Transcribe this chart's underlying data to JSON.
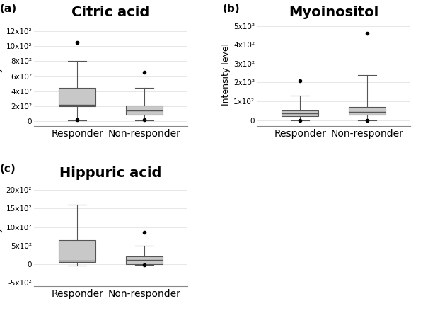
{
  "plots": [
    {
      "label": "(a)",
      "title": "Citric acid",
      "ylabel": "Intensity level",
      "groups": [
        "Responder",
        "Non-responder"
      ],
      "boxes": [
        {
          "whislo": 100,
          "q1": 2000,
          "med": 2200,
          "q3": 4500,
          "whishi": 8000,
          "fliers_high": [
            10500
          ],
          "fliers_low": [
            200
          ]
        },
        {
          "whislo": 100,
          "q1": 900,
          "med": 1400,
          "q3": 2100,
          "whishi": 4500,
          "fliers_high": [
            6500
          ],
          "fliers_low": [
            200
          ]
        }
      ],
      "ylim": [
        -600,
        13200
      ],
      "yticks": [
        0,
        2000,
        4000,
        6000,
        8000,
        10000,
        12000
      ],
      "yticklabels": [
        "0",
        "2x10²",
        "4x10²",
        "6x10²",
        "8x10²",
        "10x10²",
        "12x10²"
      ]
    },
    {
      "label": "(b)",
      "title": "Myoinositol",
      "ylabel": "Intensity level",
      "groups": [
        "Responder",
        "Non-responder"
      ],
      "boxes": [
        {
          "whislo": 0,
          "q1": 2000,
          "med": 3500,
          "q3": 5000,
          "whishi": 13000,
          "fliers_high": [
            21000
          ],
          "fliers_low": [
            0
          ]
        },
        {
          "whislo": 0,
          "q1": 3000,
          "med": 4500,
          "q3": 7000,
          "whishi": 24000,
          "fliers_high": [
            46000
          ],
          "fliers_low": [
            0
          ]
        }
      ],
      "ylim": [
        -3000,
        52000
      ],
      "yticks": [
        0,
        10000,
        20000,
        30000,
        40000,
        50000
      ],
      "yticklabels": [
        "0",
        "1x10²",
        "2x10²",
        "3x10²",
        "4x10²",
        "5x10²"
      ]
    },
    {
      "label": "(c)",
      "title": "Hippuric acid",
      "ylabel": "Intensity level",
      "groups": [
        "Responder",
        "Non-responder"
      ],
      "boxes": [
        {
          "whislo": -500,
          "q1": 500,
          "med": 1000,
          "q3": 6500,
          "whishi": 16000,
          "fliers_high": [],
          "fliers_low": []
        },
        {
          "whislo": -200,
          "q1": 0,
          "med": 1200,
          "q3": 2000,
          "whishi": 5000,
          "fliers_high": [
            8500
          ],
          "fliers_low": [
            -200
          ]
        }
      ],
      "ylim": [
        -6000,
        22000
      ],
      "yticks": [
        -5000,
        0,
        5000,
        10000,
        15000,
        20000
      ],
      "yticklabels": [
        "-5x10²",
        "0",
        "5x10²",
        "10x10²",
        "15x10²",
        "20x10²"
      ]
    }
  ],
  "box_facecolor": "#c8c8c8",
  "box_edgecolor": "#555555",
  "median_color": "#555555",
  "whisker_color": "#555555",
  "cap_color": "#555555",
  "flier_color": "black",
  "background_color": "#ffffff",
  "panel_label_fontsize": 11,
  "title_fontsize": 14,
  "tick_fontsize": 7.5,
  "xlabel_fontsize": 10,
  "ylabel_fontsize": 9
}
